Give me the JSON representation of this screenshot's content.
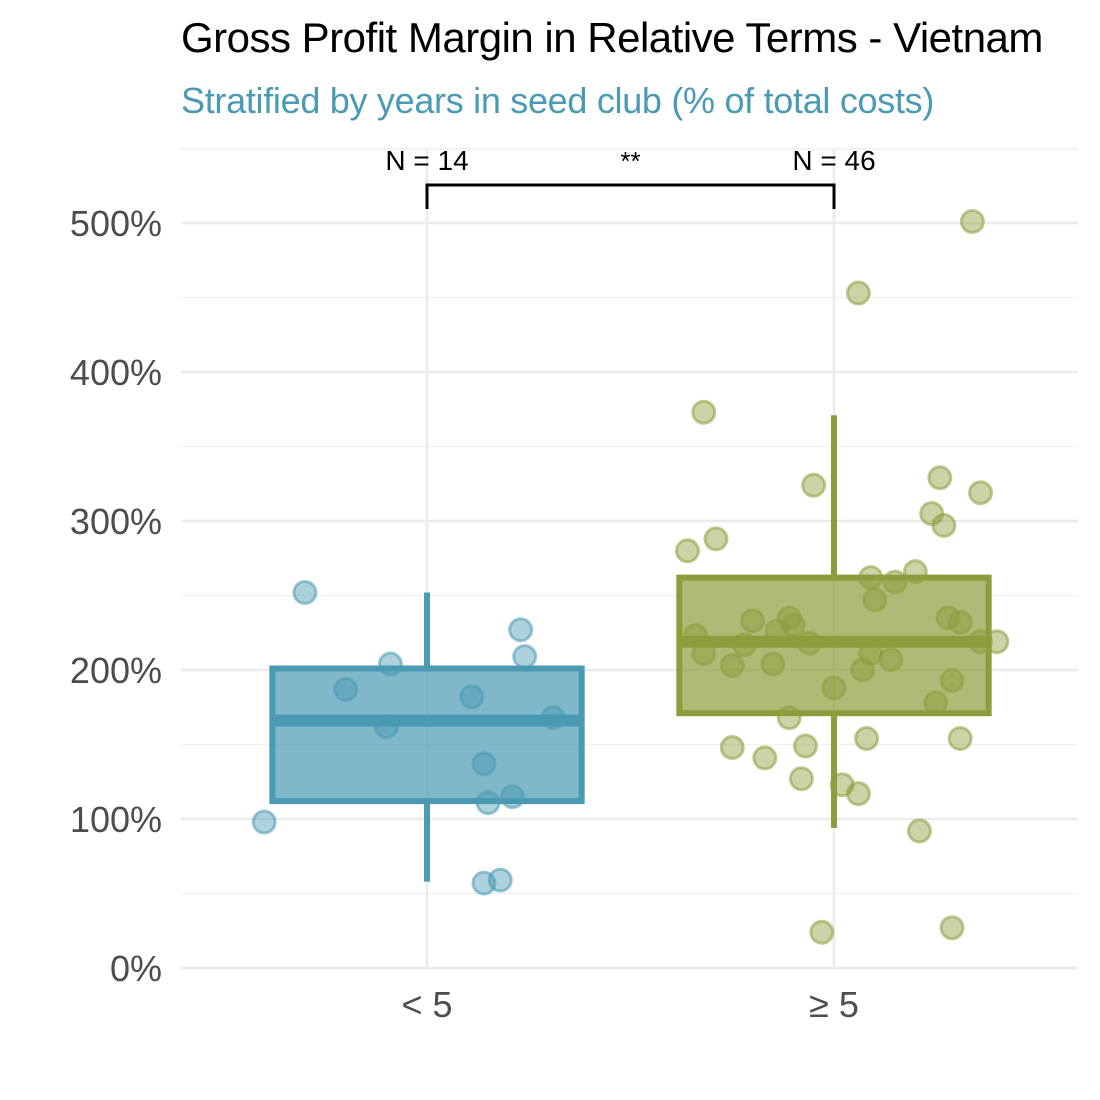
{
  "chart_data": {
    "type": "boxplot",
    "title": "Gross Profit Margin in Relative Terms - Vietnam",
    "subtitle": "Stratified by years in seed club (% of total costs)",
    "xlabel": "",
    "ylabel": "",
    "ylim": [
      0,
      540
    ],
    "y_ticks": [
      {
        "value": 0,
        "label": "0%"
      },
      {
        "value": 100,
        "label": "100%"
      },
      {
        "value": 200,
        "label": "200%"
      },
      {
        "value": 300,
        "label": "300%"
      },
      {
        "value": 400,
        "label": "400%"
      },
      {
        "value": 500,
        "label": "500%"
      }
    ],
    "grid": true,
    "categories": [
      "< 5",
      "≥ 5"
    ],
    "groups": [
      {
        "category": "< 5",
        "color": "#4a9ab3",
        "n_label": "N = 14",
        "box": {
          "whisker_low": 58,
          "q1": 112,
          "median": 166,
          "q3": 201,
          "whisker_high": 252
        },
        "points": [
          {
            "dx": -0.4,
            "y": 98
          },
          {
            "dx": -0.3,
            "y": 252
          },
          {
            "dx": -0.2,
            "y": 187
          },
          {
            "dx": -0.1,
            "y": 162
          },
          {
            "dx": -0.09,
            "y": 204
          },
          {
            "dx": 0.11,
            "y": 182
          },
          {
            "dx": 0.14,
            "y": 137
          },
          {
            "dx": 0.15,
            "y": 111
          },
          {
            "dx": 0.14,
            "y": 57
          },
          {
            "dx": 0.18,
            "y": 59
          },
          {
            "dx": 0.21,
            "y": 115
          },
          {
            "dx": 0.23,
            "y": 227
          },
          {
            "dx": 0.24,
            "y": 209
          },
          {
            "dx": 0.31,
            "y": 168
          }
        ]
      },
      {
        "category": "≥ 5",
        "color": "#8c9e3c",
        "n_label": "N = 46",
        "box": {
          "whisker_low": 94,
          "q1": 171,
          "median": 219,
          "q3": 262,
          "whisker_high": 371
        },
        "points": [
          {
            "dx": 0.34,
            "y": 501
          },
          {
            "dx": 0.06,
            "y": 453
          },
          {
            "dx": -0.32,
            "y": 373
          },
          {
            "dx": -0.05,
            "y": 324
          },
          {
            "dx": 0.26,
            "y": 329
          },
          {
            "dx": 0.36,
            "y": 319
          },
          {
            "dx": 0.24,
            "y": 305
          },
          {
            "dx": 0.27,
            "y": 297
          },
          {
            "dx": -0.29,
            "y": 288
          },
          {
            "dx": -0.36,
            "y": 280
          },
          {
            "dx": 0.2,
            "y": 266
          },
          {
            "dx": 0.09,
            "y": 262
          },
          {
            "dx": 0.15,
            "y": 259
          },
          {
            "dx": 0.1,
            "y": 247
          },
          {
            "dx": -0.2,
            "y": 233
          },
          {
            "dx": -0.11,
            "y": 235
          },
          {
            "dx": -0.1,
            "y": 230
          },
          {
            "dx": -0.14,
            "y": 226
          },
          {
            "dx": -0.34,
            "y": 223
          },
          {
            "dx": -0.22,
            "y": 217
          },
          {
            "dx": -0.06,
            "y": 218
          },
          {
            "dx": 0.28,
            "y": 235
          },
          {
            "dx": 0.31,
            "y": 232
          },
          {
            "dx": 0.4,
            "y": 219
          },
          {
            "dx": -0.32,
            "y": 211
          },
          {
            "dx": -0.25,
            "y": 203
          },
          {
            "dx": -0.15,
            "y": 204
          },
          {
            "dx": 0.09,
            "y": 211
          },
          {
            "dx": 0.07,
            "y": 200
          },
          {
            "dx": 0.14,
            "y": 207
          },
          {
            "dx": 0.0,
            "y": 188
          },
          {
            "dx": 0.29,
            "y": 193
          },
          {
            "dx": 0.25,
            "y": 178
          },
          {
            "dx": -0.11,
            "y": 168
          },
          {
            "dx": -0.25,
            "y": 148
          },
          {
            "dx": -0.17,
            "y": 141
          },
          {
            "dx": -0.07,
            "y": 149
          },
          {
            "dx": 0.08,
            "y": 154
          },
          {
            "dx": 0.31,
            "y": 154
          },
          {
            "dx": -0.08,
            "y": 127
          },
          {
            "dx": 0.02,
            "y": 123
          },
          {
            "dx": 0.06,
            "y": 117
          },
          {
            "dx": 0.21,
            "y": 92
          },
          {
            "dx": -0.03,
            "y": 24
          },
          {
            "dx": 0.29,
            "y": 27
          },
          {
            "dx": 0.36,
            "y": 219
          }
        ]
      }
    ],
    "significance": {
      "label": "**",
      "from": "< 5",
      "to": "≥ 5"
    }
  }
}
